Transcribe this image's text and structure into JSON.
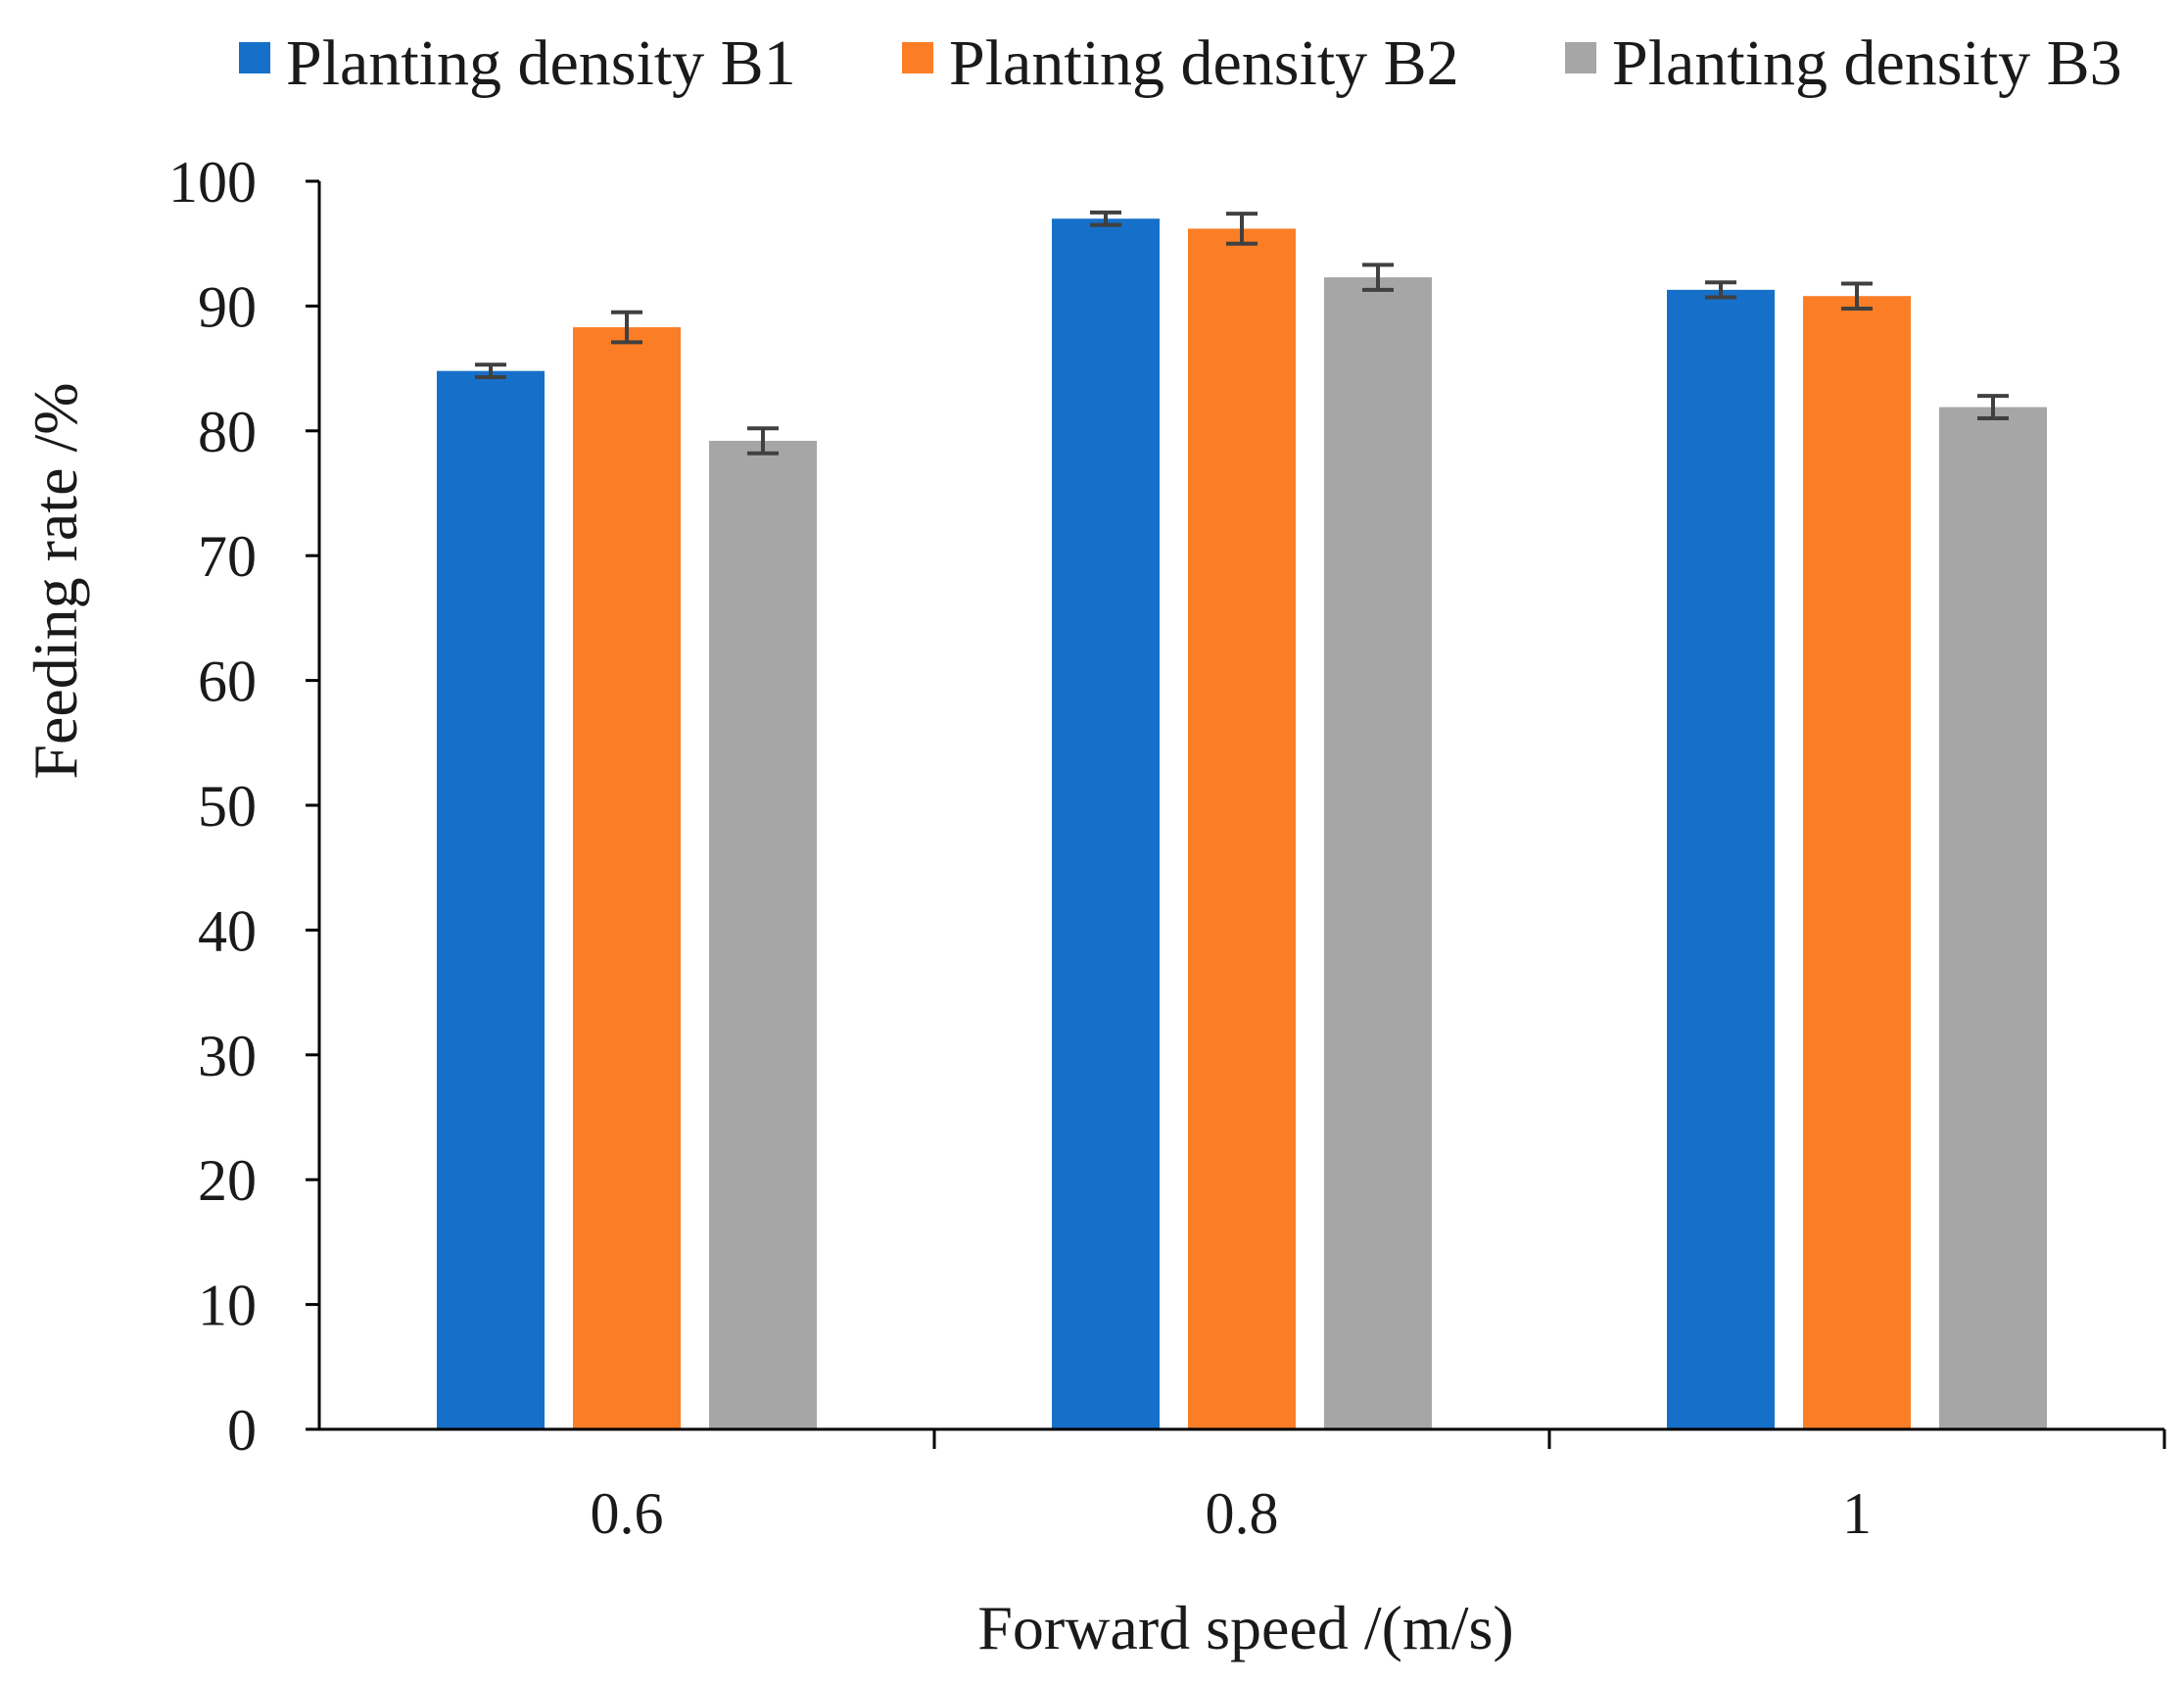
{
  "chart_data": {
    "type": "bar",
    "title": "",
    "xlabel": "Forward speed /(m/s)",
    "ylabel": "Feeding rate /%",
    "categories": [
      "0.6",
      "0.8",
      "1"
    ],
    "ylim": [
      0,
      100
    ],
    "yticks": [
      0,
      10,
      20,
      30,
      40,
      50,
      60,
      70,
      80,
      90,
      100
    ],
    "ytick_labels": [
      "0",
      "10",
      "20",
      "30",
      "40",
      "50",
      "60",
      "70",
      "80",
      "90",
      "100"
    ],
    "legend_position": "top",
    "grid": false,
    "series": [
      {
        "name": "Planting density B1",
        "color": "#1670c9",
        "values": [
          84.8,
          97.0,
          91.3
        ],
        "errors": [
          0.5,
          0.5,
          0.6
        ]
      },
      {
        "name": "Planting density B2",
        "color": "#fb7e27",
        "values": [
          88.3,
          96.2,
          90.8
        ],
        "errors": [
          1.2,
          1.2,
          1.0
        ]
      },
      {
        "name": "Planting density B3",
        "color": "#a6a6a6",
        "values": [
          79.2,
          92.3,
          81.9
        ],
        "errors": [
          1.0,
          1.0,
          0.9
        ]
      }
    ],
    "error_bar_color": "#404040",
    "axis_color": "#000000"
  }
}
